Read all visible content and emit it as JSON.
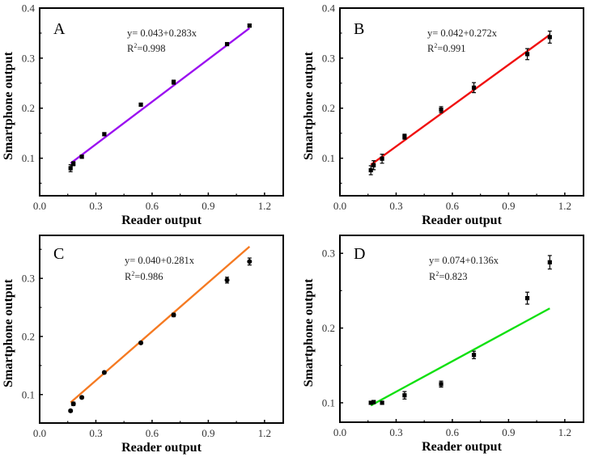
{
  "chart_data": [
    {
      "type": "scatter",
      "panel": "A",
      "xlabel": "Reader output",
      "ylabel": "Smartphone output",
      "xlim": [
        0,
        1.3
      ],
      "ylim": [
        0.025,
        0.4
      ],
      "xticks": [
        0.0,
        0.3,
        0.6,
        0.9,
        1.2
      ],
      "xtick_labels": [
        "0.0",
        "0.3",
        "0.6",
        "0.9",
        "1.2"
      ],
      "yticks": [
        0.1,
        0.2,
        0.3,
        0.4
      ],
      "ytick_labels": [
        "0.1",
        "0.2",
        "0.3",
        "0.4"
      ],
      "equation": "y= 0.043+0.283x",
      "r2_label": "R",
      "r2_value": "=0.998",
      "fit": {
        "intercept": 0.043,
        "slope": 0.283,
        "x_range": [
          0.165,
          1.12
        ],
        "color": "#9b10f0"
      },
      "points": [
        {
          "x": 0.165,
          "y": 0.08,
          "err": 0.007
        },
        {
          "x": 0.18,
          "y": 0.089,
          "err": 0.004
        },
        {
          "x": 0.225,
          "y": 0.103,
          "err": 0.003
        },
        {
          "x": 0.345,
          "y": 0.148,
          "err": 0.003
        },
        {
          "x": 0.54,
          "y": 0.207,
          "err": 0.003
        },
        {
          "x": 0.715,
          "y": 0.252,
          "err": 0.004
        },
        {
          "x": 1.0,
          "y": 0.328,
          "err": 0.002
        },
        {
          "x": 1.12,
          "y": 0.365,
          "err": 0.003
        }
      ]
    },
    {
      "type": "scatter",
      "panel": "B",
      "xlabel": "Reader output",
      "ylabel": "Smartphone output",
      "xlim": [
        0,
        1.3
      ],
      "ylim": [
        0.025,
        0.4
      ],
      "xticks": [
        0.0,
        0.3,
        0.6,
        0.9,
        1.2
      ],
      "xtick_labels": [
        "0.0",
        "0.3",
        "0.6",
        "0.9",
        "1.2"
      ],
      "yticks": [
        0.1,
        0.2,
        0.3,
        0.4
      ],
      "ytick_labels": [
        "0.1",
        "0.2",
        "0.3",
        "0.4"
      ],
      "equation": "y= 0.042+0.272x",
      "r2_label": "R",
      "r2_value": "=0.991",
      "fit": {
        "intercept": 0.042,
        "slope": 0.272,
        "x_range": [
          0.165,
          1.12
        ],
        "color": "#f01010"
      },
      "points": [
        {
          "x": 0.165,
          "y": 0.076,
          "err": 0.009
        },
        {
          "x": 0.18,
          "y": 0.086,
          "err": 0.009
        },
        {
          "x": 0.225,
          "y": 0.099,
          "err": 0.009
        },
        {
          "x": 0.345,
          "y": 0.143,
          "err": 0.005
        },
        {
          "x": 0.54,
          "y": 0.197,
          "err": 0.006
        },
        {
          "x": 0.715,
          "y": 0.241,
          "err": 0.01
        },
        {
          "x": 1.0,
          "y": 0.308,
          "err": 0.011
        },
        {
          "x": 1.12,
          "y": 0.342,
          "err": 0.012
        }
      ]
    },
    {
      "type": "scatter",
      "panel": "C",
      "xlabel": "Reader output",
      "ylabel": "Smartphone output",
      "xlim": [
        0,
        1.3
      ],
      "ylim": [
        0.051,
        0.374
      ],
      "xticks": [
        0.0,
        0.3,
        0.6,
        0.9,
        1.2
      ],
      "xtick_labels": [
        "0.0",
        "0.3",
        "0.6",
        "0.9",
        "1.2"
      ],
      "yticks": [
        0.1,
        0.2,
        0.3
      ],
      "ytick_labels": [
        "0.1",
        "0.2",
        "0.3"
      ],
      "equation": "y= 0.040+0.281x",
      "r2_label": "R",
      "r2_value": "=0.986",
      "fit": {
        "intercept": 0.04,
        "slope": 0.281,
        "x_range": [
          0.165,
          1.12
        ],
        "color": "#f57a22"
      },
      "points": [
        {
          "x": 0.165,
          "y": 0.072,
          "err": 0.002
        },
        {
          "x": 0.18,
          "y": 0.084,
          "err": 0.003
        },
        {
          "x": 0.225,
          "y": 0.095,
          "err": 0.002
        },
        {
          "x": 0.345,
          "y": 0.138,
          "err": 0.002
        },
        {
          "x": 0.54,
          "y": 0.189,
          "err": 0.002
        },
        {
          "x": 0.715,
          "y": 0.237,
          "err": 0.003
        },
        {
          "x": 1.0,
          "y": 0.297,
          "err": 0.005
        },
        {
          "x": 1.12,
          "y": 0.329,
          "err": 0.006
        }
      ]
    },
    {
      "type": "scatter",
      "panel": "D",
      "xlabel": "Reader output",
      "ylabel": "Smartphone output",
      "xlim": [
        0,
        1.3
      ],
      "ylim": [
        0.074,
        0.324
      ],
      "xticks": [
        0.0,
        0.3,
        0.6,
        0.9,
        1.2
      ],
      "xtick_labels": [
        "0.0",
        "0.3",
        "0.6",
        "0.9",
        "1.2"
      ],
      "yticks": [
        0.1,
        0.2,
        0.3
      ],
      "ytick_labels": [
        "0.1",
        "0.2",
        "0.3"
      ],
      "equation": "y= 0.074+0.136x",
      "r2_label": "R",
      "r2_value": "=0.823",
      "fit": {
        "intercept": 0.074,
        "slope": 0.136,
        "x_range": [
          0.165,
          1.12
        ],
        "color": "#10e010"
      },
      "points": [
        {
          "x": 0.165,
          "y": 0.1,
          "err": 0.002
        },
        {
          "x": 0.18,
          "y": 0.101,
          "err": 0.002
        },
        {
          "x": 0.225,
          "y": 0.1,
          "err": 0.002
        },
        {
          "x": 0.345,
          "y": 0.11,
          "err": 0.005
        },
        {
          "x": 0.54,
          "y": 0.125,
          "err": 0.004
        },
        {
          "x": 0.715,
          "y": 0.164,
          "err": 0.005
        },
        {
          "x": 1.0,
          "y": 0.24,
          "err": 0.008
        },
        {
          "x": 1.12,
          "y": 0.288,
          "err": 0.009
        }
      ]
    }
  ]
}
